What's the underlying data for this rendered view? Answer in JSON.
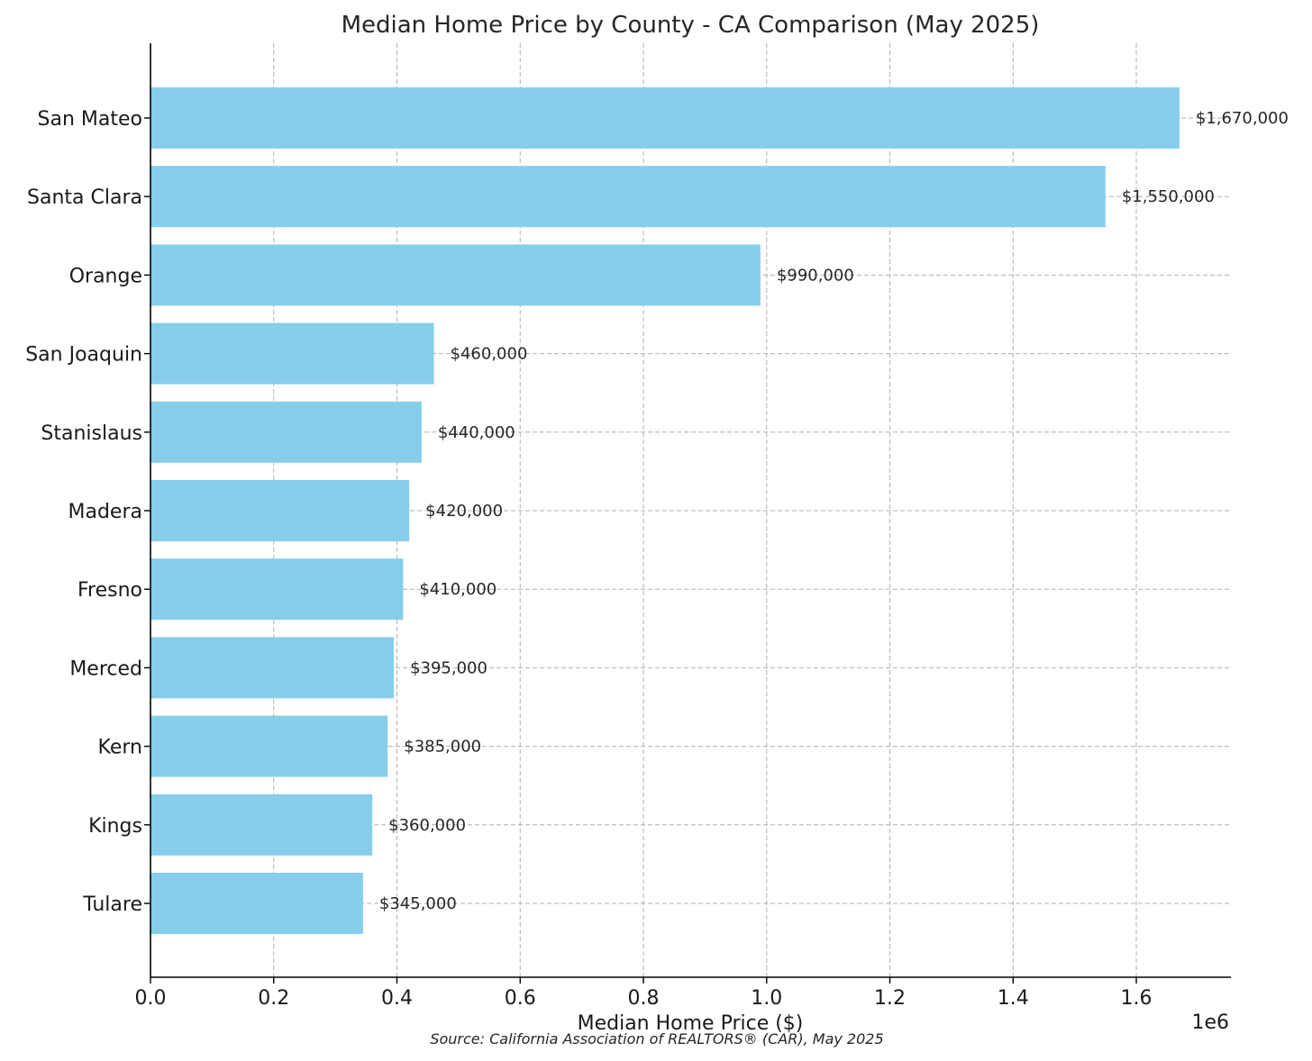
{
  "chart_data": {
    "type": "bar",
    "orientation": "horizontal",
    "title": "Median Home Price by County - CA Comparison (May 2025)",
    "xlabel": "Median Home Price ($)",
    "ylabel": "",
    "x_exponent_label": "1e6",
    "xlim": [
      0,
      1753500
    ],
    "xticks": [
      0,
      200000,
      400000,
      600000,
      800000,
      1000000,
      1200000,
      1400000,
      1600000
    ],
    "xtick_labels": [
      "0.0",
      "0.2",
      "0.4",
      "0.6",
      "0.8",
      "1.0",
      "1.2",
      "1.4",
      "1.6"
    ],
    "categories": [
      "San Mateo",
      "Santa Clara",
      "Orange",
      "San Joaquin",
      "Stanislaus",
      "Madera",
      "Fresno",
      "Merced",
      "Kern",
      "Kings",
      "Tulare"
    ],
    "values": [
      1670000,
      1550000,
      990000,
      460000,
      440000,
      420000,
      410000,
      395000,
      385000,
      360000,
      345000
    ],
    "data_labels": [
      "$1,670,000",
      "$1,550,000",
      "$990,000",
      "$460,000",
      "$440,000",
      "$420,000",
      "$410,000",
      "$395,000",
      "$385,000",
      "$360,000",
      "$345,000"
    ],
    "bar_color": "#87ceeb",
    "grid": true,
    "source": "Source: California Association of REALTORS® (CAR), May 2025"
  }
}
